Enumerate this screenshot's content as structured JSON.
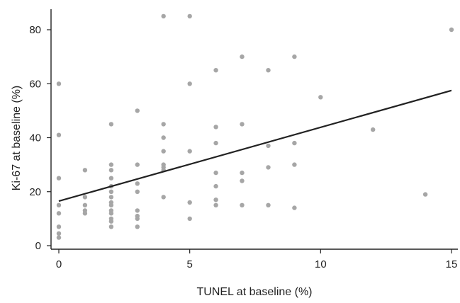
{
  "chart_data": {
    "type": "scatter",
    "title": "",
    "xlabel": "TUNEL at baseline (%)",
    "ylabel": "Ki-67 at baseline (%)",
    "xlim": [
      -0.6,
      15.3
    ],
    "ylim": [
      -2,
      88
    ],
    "xticks": [
      0,
      5,
      10,
      15
    ],
    "yticks": [
      0,
      20,
      40,
      60,
      80
    ],
    "grid": false,
    "colors": {
      "points": "#a6a6a6",
      "line": "#222222",
      "axis": "#222222"
    },
    "series": [
      {
        "points": [
          [
            0,
            60
          ],
          [
            0,
            41
          ],
          [
            0,
            25
          ],
          [
            0,
            15
          ],
          [
            0,
            12
          ],
          [
            0,
            7
          ],
          [
            0,
            4.5
          ],
          [
            0,
            3
          ],
          [
            1,
            28
          ],
          [
            1,
            18
          ],
          [
            1,
            15
          ],
          [
            1,
            13
          ],
          [
            1,
            12
          ],
          [
            2,
            45
          ],
          [
            2,
            30
          ],
          [
            2,
            28
          ],
          [
            2,
            25
          ],
          [
            2,
            22
          ],
          [
            2,
            20
          ],
          [
            2,
            18
          ],
          [
            2,
            16
          ],
          [
            2,
            15
          ],
          [
            2,
            13
          ],
          [
            2,
            12
          ],
          [
            2,
            10
          ],
          [
            2,
            9
          ],
          [
            2,
            7
          ],
          [
            3,
            50
          ],
          [
            3,
            30
          ],
          [
            3,
            23
          ],
          [
            3,
            20
          ],
          [
            3,
            13
          ],
          [
            3,
            11
          ],
          [
            3,
            10
          ],
          [
            3,
            7
          ],
          [
            4,
            85
          ],
          [
            4,
            45
          ],
          [
            4,
            40
          ],
          [
            4,
            35
          ],
          [
            4,
            30
          ],
          [
            4,
            29
          ],
          [
            4,
            28
          ],
          [
            4,
            18
          ],
          [
            5,
            85
          ],
          [
            5,
            60
          ],
          [
            5,
            35
          ],
          [
            5,
            16
          ],
          [
            5,
            10
          ],
          [
            6,
            65
          ],
          [
            6,
            44
          ],
          [
            6,
            38
          ],
          [
            6,
            27
          ],
          [
            6,
            22
          ],
          [
            6,
            17
          ],
          [
            6,
            15
          ],
          [
            7,
            70
          ],
          [
            7,
            45
          ],
          [
            7,
            27
          ],
          [
            7,
            24
          ],
          [
            7,
            15
          ],
          [
            8,
            65
          ],
          [
            8,
            37
          ],
          [
            8,
            29
          ],
          [
            8,
            15
          ],
          [
            9,
            70
          ],
          [
            9,
            38
          ],
          [
            9,
            30
          ],
          [
            9,
            14
          ],
          [
            10,
            55
          ],
          [
            12,
            43
          ],
          [
            14,
            19
          ],
          [
            15,
            80
          ]
        ]
      }
    ],
    "trendline": {
      "x": [
        0,
        15
      ],
      "y": [
        16.5,
        57.5
      ]
    }
  }
}
